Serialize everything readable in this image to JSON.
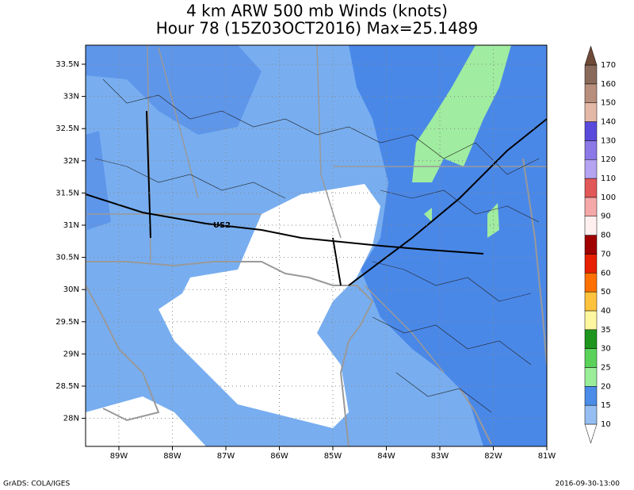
{
  "title": {
    "line1": "4 km ARW 500 mb Winds (knots)",
    "line2": "Hour 78 (15Z03OCT2016) Max=25.1489"
  },
  "map": {
    "lat_labels": [
      "33.5N",
      "33N",
      "32.5N",
      "32N",
      "31.5N",
      "31N",
      "30.5N",
      "30N",
      "29.5N",
      "29N",
      "28.5N",
      "28N"
    ],
    "lon_labels": [
      "89W",
      "88W",
      "87W",
      "86W",
      "85W",
      "84W",
      "83W",
      "82W",
      "81W"
    ],
    "road_label": "US2"
  },
  "colorbar": {
    "levels": [
      10,
      15,
      20,
      25,
      30,
      35,
      40,
      50,
      60,
      70,
      80,
      90,
      100,
      110,
      120,
      130,
      140,
      150,
      160,
      170
    ],
    "colors": [
      "#ffffff",
      "#96bef2",
      "#4a8ce8",
      "#9aee9a",
      "#5ad25a",
      "#1e961e",
      "#fff7a0",
      "#ffc23c",
      "#ff7000",
      "#e62000",
      "#a00000",
      "#fff0f0",
      "#f5a8a8",
      "#e25858",
      "#b4a4f2",
      "#8c78e6",
      "#5a4adc",
      "#e4b8a6",
      "#b88e7c",
      "#8a6a5a",
      "#6e4a38"
    ]
  },
  "footer": {
    "left": "GrADS: COLA/IGES",
    "right": "2016-09-30-13:00"
  }
}
